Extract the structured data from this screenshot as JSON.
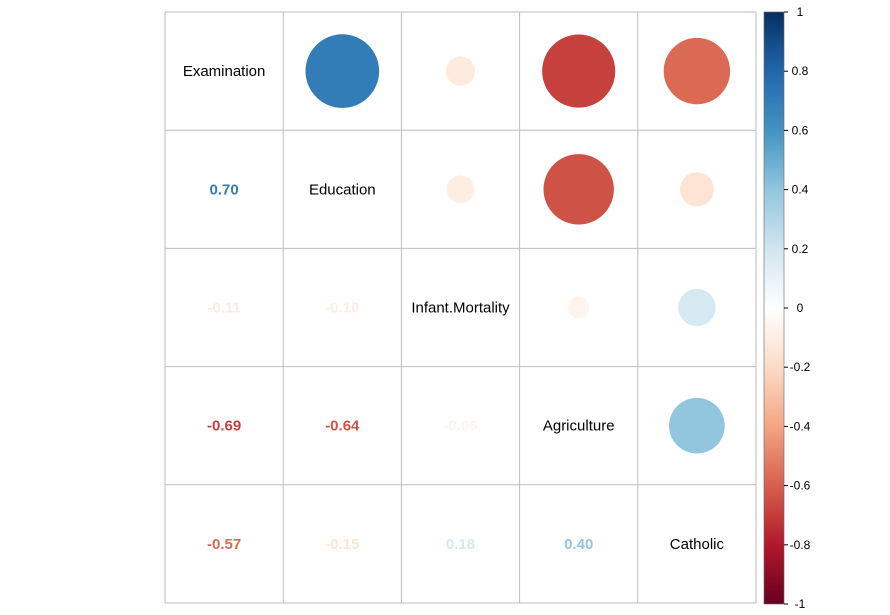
{
  "chart_data": {
    "type": "heatmap",
    "variables": [
      "Examination",
      "Education",
      "Infant.Mortality",
      "Agriculture",
      "Catholic"
    ],
    "matrix": [
      [
        1.0,
        0.7,
        -0.11,
        -0.69,
        -0.57
      ],
      [
        0.7,
        1.0,
        -0.1,
        -0.64,
        -0.15
      ],
      [
        -0.11,
        -0.1,
        1.0,
        -0.06,
        0.18
      ],
      [
        -0.69,
        -0.64,
        -0.06,
        1.0,
        0.4
      ],
      [
        -0.57,
        -0.15,
        0.18,
        0.4,
        1.0
      ]
    ],
    "lower_labels": [
      [
        "",
        "",
        "",
        "",
        ""
      ],
      [
        "0.70",
        "",
        "",
        "",
        ""
      ],
      [
        "-0.11",
        "-0.10",
        "",
        "",
        ""
      ],
      [
        "-0.69",
        "-0.64",
        "-0.06",
        "",
        ""
      ],
      [
        "-0.57",
        "-0.15",
        "0.18",
        "0.40",
        ""
      ]
    ],
    "upper_method": "circle",
    "lower_method": "number",
    "diagonal": "variable-names",
    "colorbar": {
      "position": "right",
      "range": [
        -1,
        1
      ],
      "ticks": [
        "1",
        "0.8",
        "0.6",
        "0.4",
        "0.2",
        "0",
        "-0.2",
        "-0.4",
        "-0.6",
        "-0.8",
        "-1"
      ],
      "palette": [
        "#67001F",
        "#B2182B",
        "#D6604D",
        "#F4A582",
        "#FDDBC7",
        "#FFFFFF",
        "#D1E5F0",
        "#92C5DE",
        "#4393C3",
        "#2166AC",
        "#053061"
      ]
    },
    "grid": true,
    "grid_color": "#BEBEBE"
  }
}
